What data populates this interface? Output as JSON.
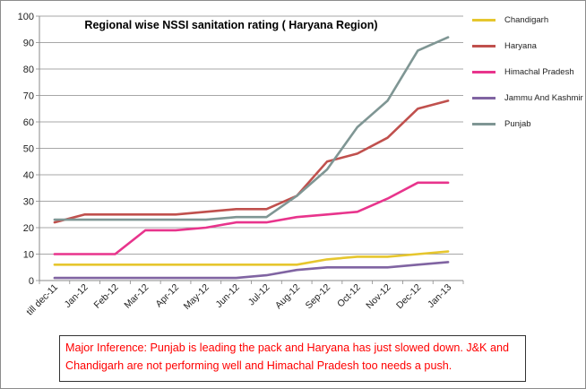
{
  "chart_data": {
    "type": "line",
    "title": "Regional wise NSSI sanitation rating ( Haryana Region)",
    "xlabel": "",
    "ylabel": "",
    "ylim": [
      0,
      100
    ],
    "yticks": [
      0,
      10,
      20,
      30,
      40,
      50,
      60,
      70,
      80,
      90,
      100
    ],
    "grid": "horizontal",
    "legend_position": "right",
    "categories": [
      "till dec-11",
      "Jan-12",
      "Feb-12",
      "Mar-12",
      "Apr-12",
      "May-12",
      "Jun-12",
      "Jul-12",
      "Aug-12",
      "Sep-12",
      "Oct-12",
      "Nov-12",
      "Dec-12",
      "Jan-13"
    ],
    "series": [
      {
        "name": "Chandigarh",
        "color": "#e6c62e",
        "values": [
          6,
          6,
          6,
          6,
          6,
          6,
          6,
          6,
          6,
          8,
          9,
          9,
          10,
          11
        ]
      },
      {
        "name": "Haryana",
        "color": "#c0504d",
        "values": [
          22,
          25,
          25,
          25,
          25,
          26,
          27,
          27,
          32,
          45,
          48,
          54,
          65,
          68
        ]
      },
      {
        "name": "Himachal Pradesh",
        "color": "#e8348c",
        "values": [
          10,
          10,
          10,
          19,
          19,
          20,
          22,
          22,
          24,
          25,
          26,
          31,
          37,
          37
        ]
      },
      {
        "name": "Jammu And Kashmir",
        "color": "#8064a2",
        "values": [
          1,
          1,
          1,
          1,
          1,
          1,
          1,
          2,
          4,
          5,
          5,
          5,
          6,
          7
        ]
      },
      {
        "name": "Punjab",
        "color": "#7f9694",
        "values": [
          23,
          23,
          23,
          23,
          23,
          23,
          24,
          24,
          32,
          42,
          58,
          68,
          87,
          92
        ]
      }
    ]
  },
  "inference": {
    "text": "Major Inference: Punjab is leading the pack and Haryana has just slowed down. J&K and Chandigarh are not performing well and Himachal Pradesh too needs a push."
  }
}
